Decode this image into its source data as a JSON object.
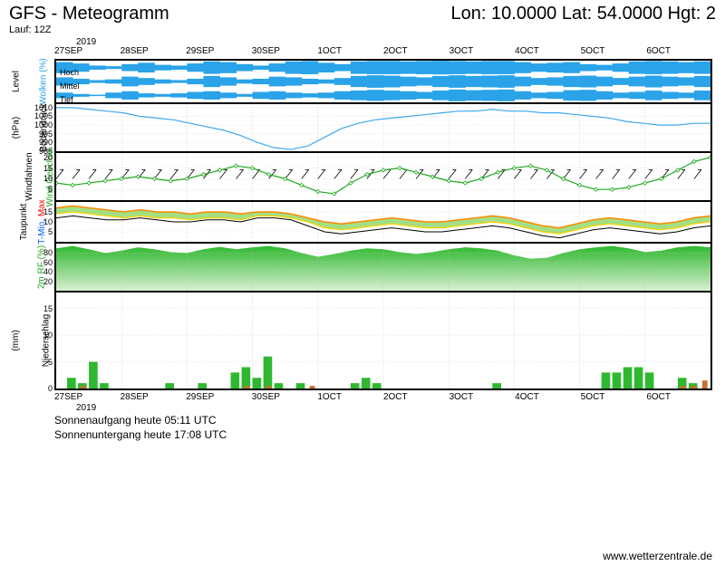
{
  "header": {
    "title": "GFS - Meteogramm",
    "location": "Lon: 10.0000 Lat: 54.0000 Hgt: 2",
    "run": "Lauf: 12Z"
  },
  "x_axis": {
    "year": "2019",
    "labels": [
      "27SEP",
      "28SEP",
      "29SEP",
      "30SEP",
      "1OCT",
      "2OCT",
      "3OCT",
      "4OCT",
      "5OCT",
      "6OCT"
    ],
    "bottom_year": "2019"
  },
  "panels": {
    "clouds": {
      "height": 50,
      "ylabel": "Wolken (%)",
      "ylabel_color": "#2aa3e8",
      "ylabel2": "Level",
      "levels": [
        "Hoch",
        "Mittel",
        "Tief"
      ],
      "cloud_color": "#2aa3e8",
      "bg": "#ffffff",
      "hoch": [
        80,
        60,
        30,
        20,
        50,
        70,
        40,
        30,
        60,
        90,
        80,
        50,
        30,
        60,
        90,
        95,
        70,
        50,
        90,
        95,
        95,
        90,
        95,
        98,
        95,
        90,
        95,
        95,
        80,
        60,
        70,
        80,
        50,
        40,
        60,
        90,
        95,
        90,
        80,
        90
      ],
      "mittel": [
        60,
        40,
        20,
        30,
        70,
        50,
        30,
        20,
        40,
        80,
        60,
        30,
        40,
        70,
        60,
        40,
        30,
        50,
        80,
        90,
        85,
        70,
        60,
        80,
        90,
        80,
        85,
        90,
        70,
        50,
        60,
        80,
        85,
        70,
        50,
        70,
        85,
        70,
        60,
        80
      ],
      "tief": [
        40,
        20,
        10,
        40,
        60,
        30,
        20,
        30,
        50,
        60,
        40,
        20,
        50,
        60,
        40,
        30,
        40,
        60,
        70,
        80,
        70,
        60,
        50,
        70,
        85,
        75,
        80,
        85,
        60,
        40,
        50,
        75,
        80,
        60,
        40,
        50,
        70,
        50,
        40,
        70
      ]
    },
    "pressure": {
      "height": 56,
      "ylabel": "Bodendruck",
      "ylabel2": "(hPa)",
      "ylim": [
        985,
        1012
      ],
      "yticks": [
        985,
        990,
        995,
        1000,
        1005,
        1010
      ],
      "line_color": "#3da8ef",
      "line_color2": "#ff0000",
      "values": [
        1010,
        1010,
        1009,
        1008,
        1007,
        1005,
        1004,
        1003,
        1001,
        999,
        997,
        994,
        990,
        987,
        986,
        988,
        993,
        998,
        1001,
        1003,
        1004,
        1005,
        1006,
        1007,
        1008,
        1008,
        1009,
        1008,
        1008,
        1007,
        1007,
        1006,
        1005,
        1004,
        1002,
        1001,
        1000,
        1000,
        1001,
        1001
      ]
    },
    "wind": {
      "height": 56,
      "ylabel": "Wind Geschwi.",
      "ylabel_color": "#1fa81f",
      "ylabel2": "Windfahnen",
      "ylim": [
        0,
        22
      ],
      "yticks": [
        5,
        10,
        15,
        20
      ],
      "line_color": "#1fa81f",
      "values": [
        8,
        7,
        8,
        9,
        10,
        11,
        10,
        9,
        10,
        12,
        14,
        16,
        15,
        12,
        10,
        7,
        4,
        3,
        8,
        12,
        14,
        15,
        13,
        11,
        9,
        8,
        10,
        13,
        15,
        16,
        14,
        10,
        7,
        5,
        5,
        6,
        8,
        10,
        14,
        18,
        20
      ]
    },
    "temp": {
      "height": 48,
      "ylabel1": "T-Min,",
      "ylabel1_color": "#0060ff",
      "ylabel2": "Max",
      "ylabel2_color": "#ff0000",
      "ylabel3": "Taupunkt",
      "ylim": [
        0,
        20
      ],
      "yticks": [
        5,
        10,
        15
      ],
      "tmax_color": "#ff8800",
      "tmin_color": "#ffd000",
      "dew_color": "#000000",
      "fill_color": "#66cc33",
      "tmax": [
        17,
        18,
        17,
        16,
        15,
        16,
        15,
        15,
        14,
        15,
        15,
        14,
        15,
        15,
        14,
        12,
        10,
        9,
        10,
        11,
        12,
        11,
        10,
        10,
        11,
        12,
        13,
        12,
        10,
        8,
        7,
        9,
        11,
        12,
        11,
        10,
        9,
        10,
        12,
        13
      ],
      "tmin": [
        14,
        15,
        14,
        13,
        12,
        13,
        12,
        12,
        11,
        12,
        12,
        11,
        13,
        13,
        12,
        10,
        7,
        6,
        7,
        8,
        9,
        8,
        7,
        7,
        8,
        9,
        10,
        9,
        7,
        5,
        4,
        6,
        8,
        9,
        8,
        7,
        6,
        7,
        9,
        10
      ],
      "dew": [
        12,
        13,
        12,
        11,
        11,
        12,
        11,
        10,
        10,
        11,
        11,
        10,
        12,
        12,
        11,
        8,
        5,
        4,
        5,
        6,
        7,
        6,
        5,
        5,
        6,
        7,
        8,
        7,
        5,
        3,
        2,
        4,
        6,
        7,
        6,
        5,
        4,
        5,
        7,
        8
      ]
    },
    "humidity": {
      "height": 56,
      "ylabel": "2m RF (%)",
      "ylabel_color": "#1fa81f",
      "ylim": [
        0,
        100
      ],
      "yticks": [
        20,
        40,
        60,
        80
      ],
      "fill_color": "#2fb82f",
      "grad_light": "#d8f0d0",
      "values": [
        90,
        95,
        88,
        80,
        85,
        92,
        88,
        82,
        80,
        88,
        93,
        88,
        92,
        95,
        90,
        80,
        72,
        78,
        85,
        90,
        88,
        82,
        78,
        82,
        88,
        92,
        90,
        85,
        75,
        68,
        70,
        80,
        88,
        92,
        95,
        90,
        82,
        85,
        92,
        95,
        92
      ]
    },
    "precip": {
      "height": 110,
      "ylabel": "Niederschlag",
      "ylabel2": "(mm)",
      "ylim": [
        0,
        18
      ],
      "yticks": [
        0,
        5,
        10,
        15
      ],
      "bar_color_green": "#2fb82f",
      "bar_color_brown": "#c97030",
      "values_green": [
        0,
        2,
        1,
        5,
        1,
        0,
        0,
        0,
        0,
        0,
        1,
        0,
        0,
        1,
        0,
        0,
        3,
        4,
        2,
        6,
        1,
        0,
        1,
        0,
        0,
        0,
        0,
        1,
        2,
        1,
        0,
        0,
        0,
        0,
        0,
        0,
        0,
        0,
        0,
        0,
        1,
        0,
        0,
        0,
        0,
        0,
        0,
        0,
        0,
        0,
        3,
        3,
        4,
        4,
        3,
        0,
        0,
        2,
        1,
        0
      ],
      "values_brown": [
        0,
        0,
        0.5,
        0,
        0,
        0,
        0,
        0,
        0,
        0,
        0,
        0,
        0,
        0,
        0,
        0,
        0,
        0.5,
        0,
        0.5,
        0,
        0,
        0,
        0.5,
        0,
        0,
        0,
        0,
        0,
        0,
        0,
        0,
        0,
        0,
        0,
        0,
        0,
        0,
        0,
        0,
        0,
        0,
        0,
        0,
        0,
        0,
        0,
        0,
        0,
        0,
        0,
        0,
        0,
        0,
        0,
        0,
        0,
        0.5,
        0.5,
        1.5
      ]
    }
  },
  "footer": {
    "sunrise": "Sonnenaufgang heute 05:11 UTC",
    "sunset": "Sonnenuntergang heute 17:08 UTC",
    "attribution": "www.wetterzentrale.de"
  }
}
